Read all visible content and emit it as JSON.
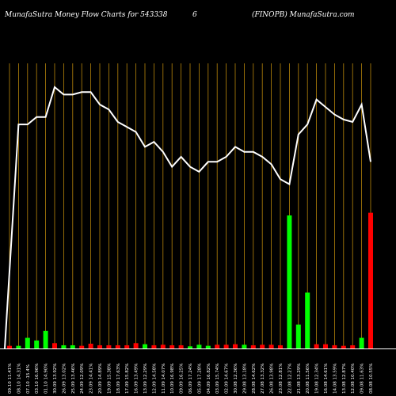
{
  "header": {
    "left": "MunafaSutra  Money Flow  Charts for 543338",
    "middle": "6",
    "right": "(FINOPB) MunafaSutra.com"
  },
  "colors": {
    "background": "#000000",
    "grid": "#b8860b",
    "line": "#ffffff",
    "up_bar": "#00ff00",
    "down_bar": "#ff0000",
    "baseline": "#ffffff"
  },
  "chart_data": {
    "type": "bar",
    "title": "MunafaSutra  Money Flow  Charts for 543338",
    "grid": true,
    "categories": [
      "09.10 11.41%",
      "08.10 14.31%",
      "07.10 -15.4%",
      "03.10 16.96%",
      "01.10 14.90%",
      "30.09 13.92%",
      "26.09 13.02%",
      "25.09 13.46%",
      "24.09 12.09%",
      "23.09 14.41%",
      "20.09 14.89%",
      "19.09 15.38%",
      "18.09 17.63%",
      "17.09 15.82%",
      "16.09 13.49%",
      "13.09 12.29%",
      "12.09 14.58%",
      "11.09 14.07%",
      "10.09 16.98%",
      "09.09 16.25%",
      "06.09 17.24%",
      "05.09 17.28%",
      "04.09 16.82%",
      "03.09 15.74%",
      "02.09 14.67%",
      "30.08 12.36%",
      "29.08 13.18%",
      "28.08 14.62%",
      "27.08 13.32%",
      "26.08 13.98%",
      "23.08 12.81%",
      "22.08 12.27%",
      "21.08 13.29%",
      "20.08 11.56%",
      "19.08 12.34%",
      "16.08 14.61%",
      "14.08 13.59%",
      "13.08 12.87%",
      "12.08 10.40%",
      "09.08 11.63%",
      "08.08 10.55%"
    ],
    "series": [
      {
        "values": [
          0.5,
          0.5,
          2.0,
          1.5,
          3.3,
          1.0,
          0.6,
          0.6,
          0.5,
          0.9,
          0.6,
          0.6,
          0.6,
          0.6,
          1.0,
          0.8,
          0.6,
          0.7,
          0.6,
          0.6,
          0.4,
          0.7,
          0.5,
          0.7,
          0.7,
          0.8,
          0.7,
          0.6,
          0.7,
          0.7,
          0.6,
          25.0,
          4.5,
          10.5,
          0.8,
          0.8,
          0.6,
          0.5,
          0.6,
          2.0,
          25.5
        ],
        "colors": [
          "red",
          "green",
          "green",
          "green",
          "green",
          "red",
          "green",
          "green",
          "red",
          "red",
          "red",
          "red",
          "red",
          "red",
          "red",
          "green",
          "red",
          "red",
          "red",
          "red",
          "green",
          "green",
          "green",
          "red",
          "red",
          "red",
          "green",
          "red",
          "red",
          "red",
          "red",
          "green",
          "green",
          "green",
          "red",
          "red",
          "red",
          "red",
          "red",
          "green",
          "red"
        ]
      },
      {
        "values": [
          0,
          90,
          90,
          93,
          93,
          105,
          102,
          102,
          103,
          103,
          98,
          96,
          91,
          89,
          87,
          81,
          83,
          79,
          73,
          77,
          73,
          71,
          75,
          75,
          77,
          81,
          79,
          79,
          77,
          74,
          68,
          66,
          86,
          90,
          100,
          97,
          94,
          92,
          91,
          98,
          75
        ]
      }
    ],
    "ylim": [
      0,
      120
    ]
  }
}
